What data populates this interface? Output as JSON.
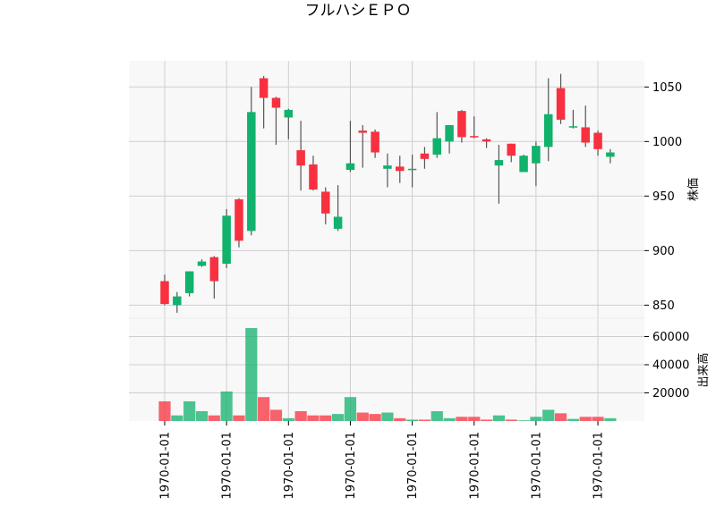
{
  "chart_data": {
    "type": "candlestick",
    "title": "フルハシＥＰＯ",
    "price_ylabel": "株価",
    "volume_ylabel": "出来高",
    "price_ylim": [
      838,
      1074
    ],
    "volume_ylim": [
      0,
      73000
    ],
    "price_ticks": [
      850,
      900,
      950,
      1000,
      1050
    ],
    "volume_ticks": [
      20000,
      40000,
      60000
    ],
    "price_tick_labels": [
      "850",
      "900",
      "950",
      "1000",
      "1050"
    ],
    "volume_tick_labels": [
      "20000",
      "40000",
      "60000"
    ],
    "x_tick_labels": [
      "1970-01-01",
      "1970-01-01",
      "1970-01-01",
      "1970-01-01",
      "1970-01-01",
      "1970-01-01",
      "1970-01-01",
      "1970-01-01"
    ],
    "x_tick_indices": [
      0,
      5,
      10,
      15,
      20,
      25,
      30,
      35
    ],
    "grid": true,
    "up_color": "#10b26c",
    "down_color": "#f8303f",
    "candles": [
      {
        "open": 872,
        "high": 878,
        "low": 850,
        "close": 851,
        "volume": 14000
      },
      {
        "open": 850,
        "high": 862,
        "low": 843,
        "close": 858,
        "volume": 4000
      },
      {
        "open": 861,
        "high": 881,
        "low": 858,
        "close": 881,
        "volume": 14000
      },
      {
        "open": 886,
        "high": 892,
        "low": 885,
        "close": 890,
        "volume": 7000
      },
      {
        "open": 894,
        "high": 895,
        "low": 856,
        "close": 872,
        "volume": 4000
      },
      {
        "open": 888,
        "high": 938,
        "low": 884,
        "close": 932,
        "volume": 21000
      },
      {
        "open": 947,
        "high": 948,
        "low": 903,
        "close": 909,
        "volume": 4000
      },
      {
        "open": 918,
        "high": 1050,
        "low": 914,
        "close": 1027,
        "volume": 66000
      },
      {
        "open": 1058,
        "high": 1060,
        "low": 1012,
        "close": 1040,
        "volume": 17000
      },
      {
        "open": 1040,
        "high": 1041,
        "low": 997,
        "close": 1031,
        "volume": 8000
      },
      {
        "open": 1022,
        "high": 1030,
        "low": 1002,
        "close": 1029,
        "volume": 2000
      },
      {
        "open": 992,
        "high": 1019,
        "low": 955,
        "close": 978,
        "volume": 7000
      },
      {
        "open": 979,
        "high": 987,
        "low": 955,
        "close": 956,
        "volume": 4000
      },
      {
        "open": 954,
        "high": 958,
        "low": 924,
        "close": 934,
        "volume": 4000
      },
      {
        "open": 920,
        "high": 960,
        "low": 918,
        "close": 931,
        "volume": 5000
      },
      {
        "open": 974,
        "high": 1019,
        "low": 972,
        "close": 980,
        "volume": 17000
      },
      {
        "open": 1010,
        "high": 1015,
        "low": 976,
        "close": 1008,
        "volume": 6000
      },
      {
        "open": 1009,
        "high": 1011,
        "low": 985,
        "close": 990,
        "volume": 5000
      },
      {
        "open": 975,
        "high": 989,
        "low": 958,
        "close": 978,
        "volume": 6000
      },
      {
        "open": 977,
        "high": 987,
        "low": 962,
        "close": 973,
        "volume": 2000
      },
      {
        "open": 975,
        "high": 988,
        "low": 958,
        "close": 975,
        "volume": 1000
      },
      {
        "open": 989,
        "high": 995,
        "low": 975,
        "close": 984,
        "volume": 1000
      },
      {
        "open": 988,
        "high": 1027,
        "low": 985,
        "close": 1003,
        "volume": 7000
      },
      {
        "open": 1000,
        "high": 1015,
        "low": 989,
        "close": 1015,
        "volume": 2000
      },
      {
        "open": 1028,
        "high": 1029,
        "low": 999,
        "close": 1004,
        "volume": 3000
      },
      {
        "open": 1005,
        "high": 1023,
        "low": 1003,
        "close": 1004,
        "volume": 3000
      },
      {
        "open": 1002,
        "high": 1003,
        "low": 994,
        "close": 1000,
        "volume": 1000
      },
      {
        "open": 978,
        "high": 997,
        "low": 943,
        "close": 983,
        "volume": 4000
      },
      {
        "open": 998,
        "high": 998,
        "low": 981,
        "close": 987,
        "volume": 1000
      },
      {
        "open": 972,
        "high": 988,
        "low": 972,
        "close": 987,
        "volume": 500
      },
      {
        "open": 980,
        "high": 1000,
        "low": 959,
        "close": 996,
        "volume": 3000
      },
      {
        "open": 995,
        "high": 1058,
        "low": 982,
        "close": 1025,
        "volume": 8000
      },
      {
        "open": 1049,
        "high": 1062,
        "low": 1016,
        "close": 1020,
        "volume": 5500
      },
      {
        "open": 1013,
        "high": 1029,
        "low": 1012,
        "close": 1014,
        "volume": 1500
      },
      {
        "open": 1013,
        "high": 1033,
        "low": 995,
        "close": 999,
        "volume": 3000
      },
      {
        "open": 1008,
        "high": 1010,
        "low": 987,
        "close": 993,
        "volume": 3000
      },
      {
        "open": 986,
        "high": 993,
        "low": 980,
        "close": 990,
        "volume": 2000
      }
    ]
  }
}
